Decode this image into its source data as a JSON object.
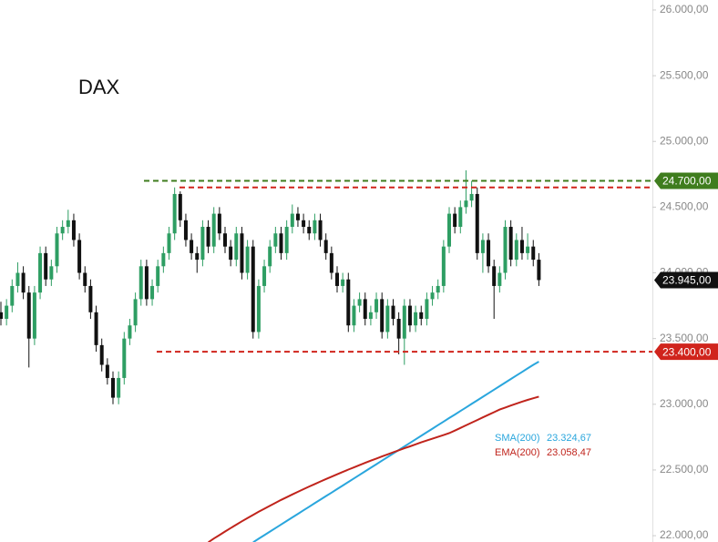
{
  "chart_data": {
    "type": "candlestick",
    "title": "DAX",
    "ylim": [
      21952,
      26076
    ],
    "yticks": [
      {
        "value": 22000,
        "label": "22.000,00"
      },
      {
        "value": 22500,
        "label": "22.500,00"
      },
      {
        "value": 23000,
        "label": "23.000,00"
      },
      {
        "value": 23500,
        "label": "23.500,00"
      },
      {
        "value": 24000,
        "label": "24.000,00"
      },
      {
        "value": 24500,
        "label": "24.500,00"
      },
      {
        "value": 25000,
        "label": "25.000,00"
      },
      {
        "value": 25500,
        "label": "25.500,00"
      },
      {
        "value": 26000,
        "label": "26.000,00"
      }
    ],
    "up_color": "#2e9e63",
    "down_color": "#111111",
    "candles": {
      "open": [
        23700,
        23650,
        23750,
        23900,
        24000,
        23850,
        23500,
        23850,
        24150,
        23950,
        24050,
        24300,
        24350,
        24400,
        24250,
        24000,
        23900,
        23700,
        23450,
        23300,
        23200,
        23050,
        23200,
        23500,
        23600,
        23800,
        24050,
        23800,
        23900,
        24050,
        24150,
        24300,
        24600,
        24400,
        24250,
        24150,
        24100,
        24350,
        24200,
        24450,
        24300,
        24200,
        24100,
        24300,
        24000,
        24200,
        23550,
        23900,
        24050,
        24200,
        24300,
        24150,
        24350,
        24450,
        24400,
        24350,
        24300,
        24400,
        24250,
        24150,
        24000,
        23900,
        23950,
        23600,
        23750,
        23800,
        23650,
        23700,
        23800,
        23550,
        23750,
        23650,
        23500,
        23750,
        23600,
        23700,
        23650,
        23800,
        23850,
        23900,
        24200,
        24450,
        24350,
        24500,
        24550,
        24600,
        24150,
        24250,
        24050,
        23900,
        24000,
        24350,
        24100,
        24250,
        24150,
        24200,
        24100
      ],
      "high": [
        23780,
        23800,
        23950,
        24080,
        24050,
        23900,
        23900,
        24200,
        24200,
        24100,
        24350,
        24400,
        24480,
        24450,
        24300,
        24050,
        23950,
        23750,
        23500,
        23350,
        23250,
        23250,
        23550,
        23650,
        23850,
        24100,
        24100,
        23950,
        24100,
        24200,
        24350,
        24650,
        24620,
        24450,
        24300,
        24200,
        24400,
        24400,
        24500,
        24500,
        24350,
        24250,
        24350,
        24350,
        24250,
        24250,
        23950,
        24100,
        24250,
        24350,
        24350,
        24400,
        24520,
        24500,
        24450,
        24400,
        24450,
        24450,
        24300,
        24200,
        24050,
        24000,
        24000,
        23800,
        23850,
        23850,
        23750,
        23850,
        23850,
        23800,
        23800,
        23700,
        23800,
        23800,
        23750,
        23750,
        23850,
        23900,
        23950,
        24250,
        24500,
        24500,
        24550,
        24780,
        24700,
        24650,
        24300,
        24300,
        24100,
        24050,
        24400,
        24400,
        24300,
        24350,
        24300,
        24250,
        24150
      ],
      "low": [
        23600,
        23600,
        23700,
        23850,
        23800,
        23280,
        23450,
        23800,
        23900,
        23900,
        24000,
        24250,
        24300,
        24200,
        23950,
        23850,
        23650,
        23400,
        23250,
        23150,
        23000,
        23000,
        23150,
        23450,
        23550,
        23750,
        23750,
        23750,
        23850,
        24000,
        24100,
        24250,
        24350,
        24200,
        24100,
        24000,
        24050,
        24150,
        24150,
        24250,
        24150,
        24050,
        24050,
        23950,
        23950,
        23500,
        23500,
        23850,
        24000,
        24150,
        24100,
        24100,
        24300,
        24350,
        24300,
        24250,
        24250,
        24200,
        24100,
        23950,
        23850,
        23850,
        23550,
        23550,
        23700,
        23600,
        23600,
        23650,
        23500,
        23500,
        23600,
        23380,
        23300,
        23550,
        23550,
        23600,
        23600,
        23750,
        23800,
        23850,
        24150,
        24300,
        24300,
        24450,
        24500,
        24100,
        24000,
        24000,
        23650,
        23850,
        23950,
        24050,
        24050,
        24100,
        24100,
        24050,
        23900
      ],
      "close": [
        23650,
        23750,
        23900,
        24000,
        23850,
        23500,
        23850,
        24150,
        23950,
        24050,
        24300,
        24350,
        24400,
        24250,
        24000,
        23900,
        23700,
        23450,
        23300,
        23200,
        23050,
        23200,
        23500,
        23600,
        23800,
        24050,
        23800,
        23900,
        24050,
        24150,
        24300,
        24600,
        24400,
        24250,
        24150,
        24100,
        24350,
        24200,
        24450,
        24300,
        24200,
        24100,
        24300,
        24000,
        24200,
        23550,
        23900,
        24050,
        24200,
        24300,
        24150,
        24350,
        24450,
        24400,
        24350,
        24300,
        24400,
        24250,
        24150,
        24000,
        23900,
        23950,
        23600,
        23750,
        23800,
        23650,
        23700,
        23800,
        23550,
        23750,
        23650,
        23500,
        23750,
        23600,
        23700,
        23650,
        23800,
        23850,
        23900,
        24200,
        24450,
        24350,
        24500,
        24550,
        24600,
        24150,
        24250,
        24050,
        23900,
        24000,
        24350,
        24100,
        24250,
        24150,
        24200,
        24100,
        23945
      ]
    },
    "indicators": [
      {
        "name": "SMA(200)",
        "value_label": "23.324,67",
        "color": "#2aa6dd",
        "values": [
          null,
          null,
          null,
          null,
          null,
          null,
          null,
          null,
          null,
          null,
          null,
          null,
          null,
          null,
          null,
          null,
          null,
          null,
          null,
          null,
          null,
          null,
          null,
          null,
          null,
          null,
          null,
          null,
          null,
          null,
          null,
          null,
          null,
          null,
          null,
          null,
          null,
          null,
          null,
          null,
          null,
          null,
          null,
          null,
          null,
          21950,
          21977,
          22004,
          22031,
          22058,
          22085,
          22112,
          22139,
          22166,
          22193,
          22220,
          22247,
          22274,
          22301,
          22328,
          22355,
          22382,
          22409,
          22436,
          22463,
          22490,
          22517,
          22544,
          22571,
          22598,
          22625,
          22652,
          22679,
          22706,
          22733,
          22760,
          22787,
          22814,
          22841,
          22868,
          22895,
          22922,
          22949,
          22976,
          23003,
          23030,
          23057,
          23084,
          23111,
          23138,
          23165,
          23192,
          23219,
          23246,
          23273,
          23300,
          23324.67
        ]
      },
      {
        "name": "EMA(200)",
        "value_label": "23.058,47",
        "color": "#c0241c",
        "values": [
          null,
          null,
          null,
          null,
          null,
          null,
          null,
          null,
          null,
          null,
          null,
          null,
          null,
          null,
          null,
          null,
          null,
          null,
          null,
          null,
          null,
          null,
          null,
          null,
          null,
          null,
          null,
          null,
          null,
          null,
          null,
          null,
          null,
          null,
          null,
          null,
          null,
          21950,
          21978,
          22005,
          22032,
          22058,
          22084,
          22109,
          22134,
          22158,
          22182,
          22205,
          22228,
          22250,
          22272,
          22293,
          22314,
          22334,
          22354,
          22374,
          22393,
          22412,
          22431,
          22449,
          22467,
          22485,
          22503,
          22520,
          22537,
          22554,
          22571,
          22587,
          22603,
          22619,
          22635,
          22650,
          22665,
          22680,
          22695,
          22710,
          22724,
          22738,
          22752,
          22766,
          22780,
          22800,
          22820,
          22840,
          22860,
          22880,
          22900,
          22920,
          22940,
          22960,
          22975,
          22990,
          23005,
          23020,
          23033,
          23046,
          23058.47
        ]
      }
    ],
    "levels": [
      {
        "value": 24700,
        "label": "24.700,00",
        "color": "#3f7d1e"
      },
      {
        "value": 24650,
        "color": "#d0241c"
      },
      {
        "value": 23400,
        "label": "23.400,00",
        "color": "#d0241c"
      }
    ],
    "last_price": {
      "value": 23945,
      "label": "23.945,00",
      "color": "#111111"
    }
  }
}
